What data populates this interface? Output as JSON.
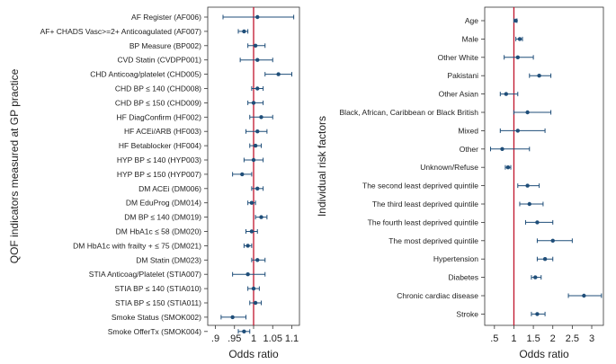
{
  "chart_data": [
    {
      "type": "forest",
      "ylabel": "QOF indicators measured at GP practice",
      "xlabel": "Odds ratio",
      "xlim": [
        0.88,
        1.12
      ],
      "xticks": [
        0.9,
        0.95,
        1,
        1.05,
        1.1
      ],
      "xtick_labels": [
        ".9",
        ".95",
        "1",
        "1.05",
        "1.1"
      ],
      "reference_line": 1,
      "reference_color": "#c0142c",
      "marker_color": "#1f4e79",
      "categories": [
        "AF Register (AF006)",
        "AF+ CHADS Vasc>=2+ Anticoagulated (AF007)",
        "BP Measure (BP002)",
        "CVD Statin (CVDPP001)",
        "CHD Anticoag/platelet (CHD005)",
        "CHD BP ≤ 140 (CHD008)",
        "CHD BP ≤ 150 (CHD009)",
        "HF DiagConfirm (HF002)",
        "HF ACEi/ARB (HF003)",
        "HF Betablocker (HF004)",
        "HYP BP ≤ 140 (HYP003)",
        "HYP BP ≤ 150 (HYP007)",
        "DM ACEi (DM006)",
        "DM EduProg (DM014)",
        "DM BP ≤ 140 (DM019)",
        "DM HbA1c ≤ 58 (DM020)",
        "DM HbA1c with frailty + ≤ 75 (DM021)",
        "DM Statin (DM023)",
        "STIA Anticoag/Platelet (STIA007)",
        "STIA BP ≤ 140 (STIA010)",
        "STIA BP ≤ 150 (STIA011)",
        "Smoke Status (SMOK002)",
        "Smoke OfferTx (SMOK004)"
      ],
      "estimates": [
        1.01,
        0.975,
        1.005,
        1.01,
        1.065,
        1.01,
        1.0,
        1.02,
        1.01,
        1.005,
        1.0,
        0.97,
        1.01,
        0.995,
        1.02,
        0.995,
        0.985,
        1.01,
        0.985,
        1.0,
        1.005,
        0.945,
        0.975
      ],
      "ci_low": [
        0.92,
        0.96,
        0.985,
        0.965,
        1.03,
        0.995,
        0.985,
        0.99,
        0.98,
        0.99,
        0.975,
        0.945,
        0.995,
        0.985,
        1.005,
        0.98,
        0.975,
        0.995,
        0.945,
        0.985,
        0.99,
        0.915,
        0.96
      ],
      "ci_high": [
        1.105,
        0.985,
        1.03,
        1.05,
        1.1,
        1.025,
        1.025,
        1.05,
        1.035,
        1.02,
        1.025,
        0.995,
        1.025,
        1.005,
        1.035,
        1.01,
        0.995,
        1.03,
        1.03,
        1.015,
        1.02,
        0.98,
        0.99
      ]
    },
    {
      "type": "forest",
      "ylabel": "Individual risk factors",
      "xlabel": "Odds ratio",
      "xlim": [
        0.25,
        3.3
      ],
      "xticks": [
        0.5,
        1,
        1.5,
        2,
        2.5,
        3
      ],
      "xtick_labels": [
        ".5",
        "1",
        "1.5",
        "2",
        "2.5",
        "3"
      ],
      "reference_line": 1,
      "reference_color": "#c0142c",
      "marker_color": "#1f4e79",
      "categories": [
        "Age",
        "Male",
        "Other White",
        "Pakistani",
        "Other Asian",
        "Black, African, Caribbean or Black British",
        "Mixed",
        "Other",
        "Unknown/Refuse",
        "The second least deprived quintile",
        "The third least deprived quintile",
        "The fourth least deprived quintile",
        "The most deprived quintile",
        "Hypertension",
        "Diabetes",
        "Chronic cardiac disease",
        "Stroke"
      ],
      "estimates": [
        1.05,
        1.15,
        1.1,
        1.65,
        0.8,
        1.35,
        1.1,
        0.7,
        0.85,
        1.35,
        1.4,
        1.6,
        2.0,
        1.8,
        1.55,
        2.8,
        1.6
      ],
      "ci_low": [
        1.0,
        1.05,
        0.75,
        1.4,
        0.65,
        1.0,
        0.65,
        0.4,
        0.78,
        1.1,
        1.15,
        1.3,
        1.6,
        1.6,
        1.45,
        2.4,
        1.45
      ],
      "ci_high": [
        1.08,
        1.22,
        1.5,
        1.95,
        1.1,
        1.95,
        1.8,
        1.4,
        0.92,
        1.65,
        1.75,
        2.0,
        2.5,
        2.0,
        1.7,
        3.25,
        1.8
      ]
    }
  ]
}
